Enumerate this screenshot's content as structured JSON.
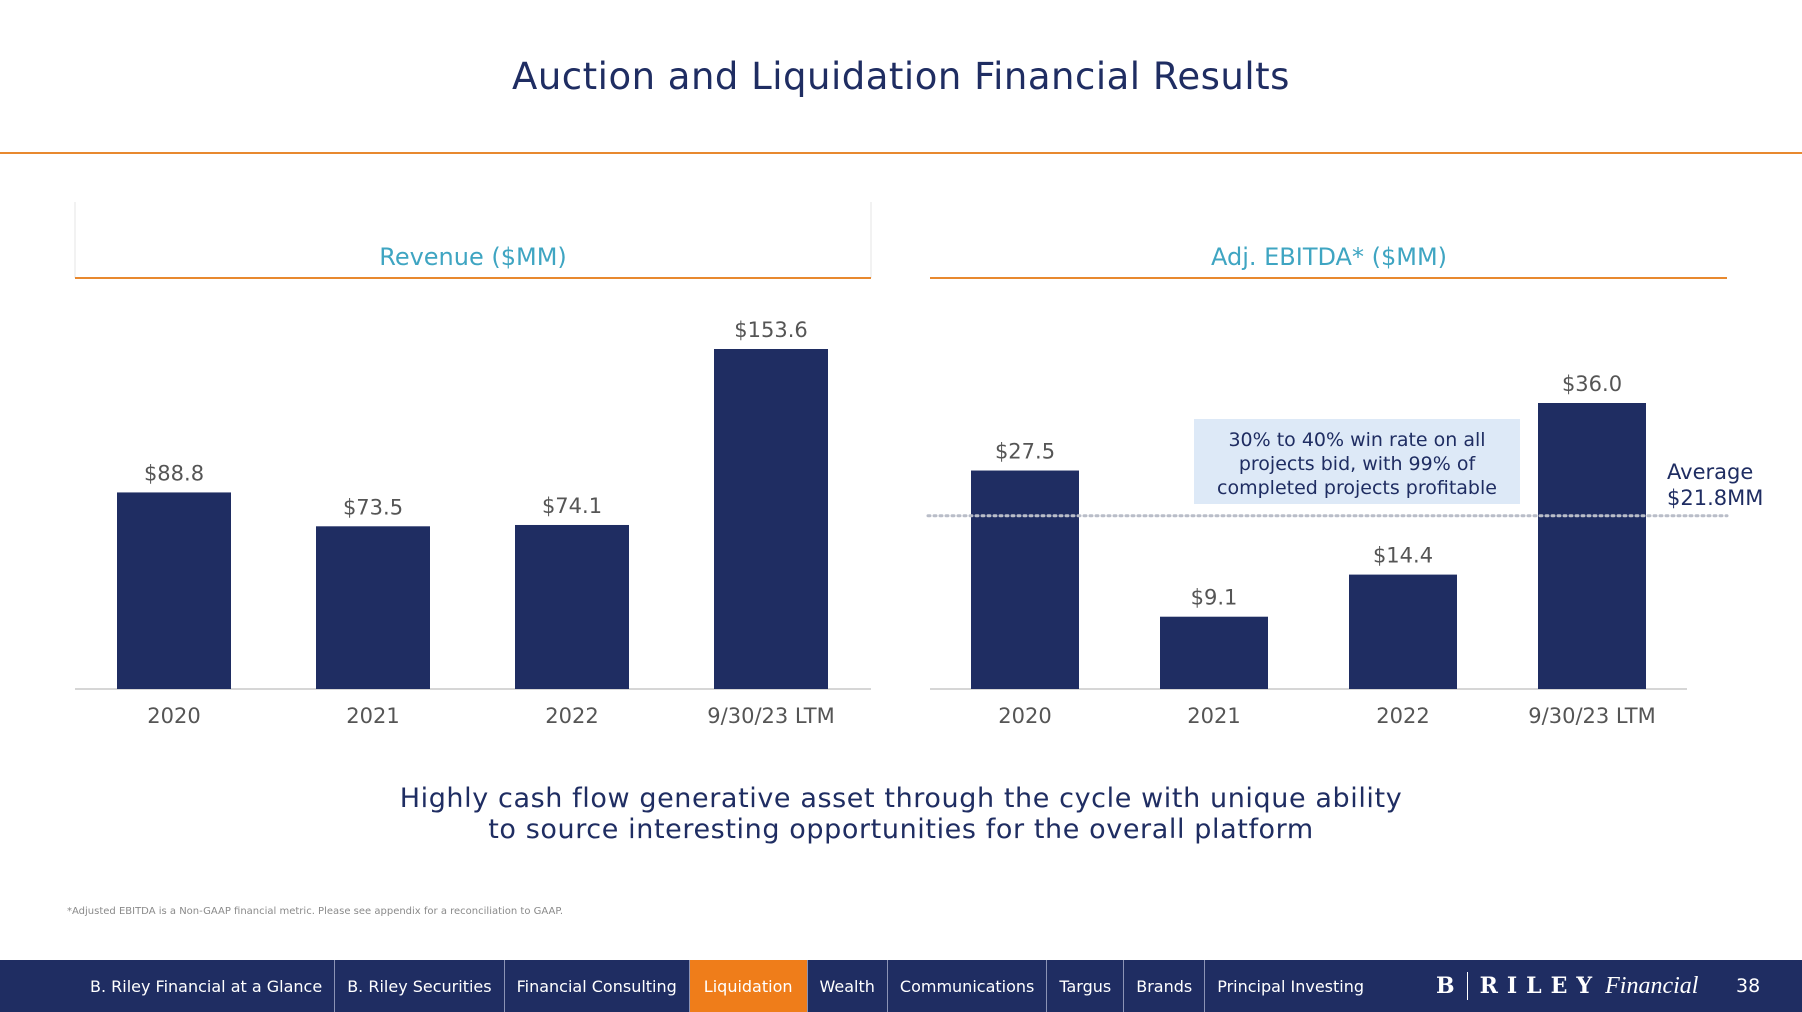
{
  "page": {
    "title": "Auction and Liquidation Financial Results",
    "tagline_line1": "Highly cash flow generative asset through the cycle with unique ability",
    "tagline_line2": "to source interesting opportunities for the overall platform",
    "footnote": "*Adjusted EBITDA is a Non-GAAP financial metric. Please see appendix for a reconciliation to GAAP."
  },
  "colors": {
    "navy": "#1f2d62",
    "orange": "#e8892f",
    "teal": "#3fa5c2",
    "callout_bg": "#dde9f7",
    "label_gray": "#555555"
  },
  "chart_data": [
    {
      "type": "bar",
      "title": "Revenue ($MM)",
      "categories": [
        "2020",
        "2021",
        "2022",
        "9/30/23 LTM"
      ],
      "values": [
        88.8,
        73.5,
        74.1,
        153.6
      ],
      "value_labels": [
        "$88.8",
        "$73.5",
        "$74.1",
        "$153.6"
      ],
      "xlabel": "",
      "ylabel": "",
      "ylim": [
        0,
        153.6
      ]
    },
    {
      "type": "bar",
      "title": "Adj. EBITDA* ($MM)",
      "categories": [
        "2020",
        "2021",
        "2022",
        "9/30/23 LTM"
      ],
      "values": [
        27.5,
        9.1,
        14.4,
        36.0
      ],
      "value_labels": [
        "$27.5",
        "$9.1",
        "$14.4",
        "$36.0"
      ],
      "xlabel": "",
      "ylabel": "",
      "ylim": [
        0,
        36.0
      ],
      "reference_line": {
        "value": 21.8,
        "label_line1": "Average",
        "label_line2": "$21.8MM",
        "style": "dotted"
      },
      "callout": {
        "line1": "30% to 40% win rate on all",
        "line2": "projects bid, with 99% of",
        "line3": "completed projects profitable"
      }
    }
  ],
  "nav": {
    "items": [
      {
        "label": "B. Riley Financial at a Glance",
        "active": false
      },
      {
        "label": "B. Riley Securities",
        "active": false
      },
      {
        "label": "Financial Consulting",
        "active": false
      },
      {
        "label": "Liquidation",
        "active": true
      },
      {
        "label": "Wealth",
        "active": false
      },
      {
        "label": "Communications",
        "active": false
      },
      {
        "label": "Targus",
        "active": false
      },
      {
        "label": "Brands",
        "active": false
      },
      {
        "label": "Principal Investing",
        "active": false
      }
    ],
    "brand_b": "B",
    "brand_riley": "RILEY",
    "brand_financial": "Financial",
    "page_number": "38"
  }
}
